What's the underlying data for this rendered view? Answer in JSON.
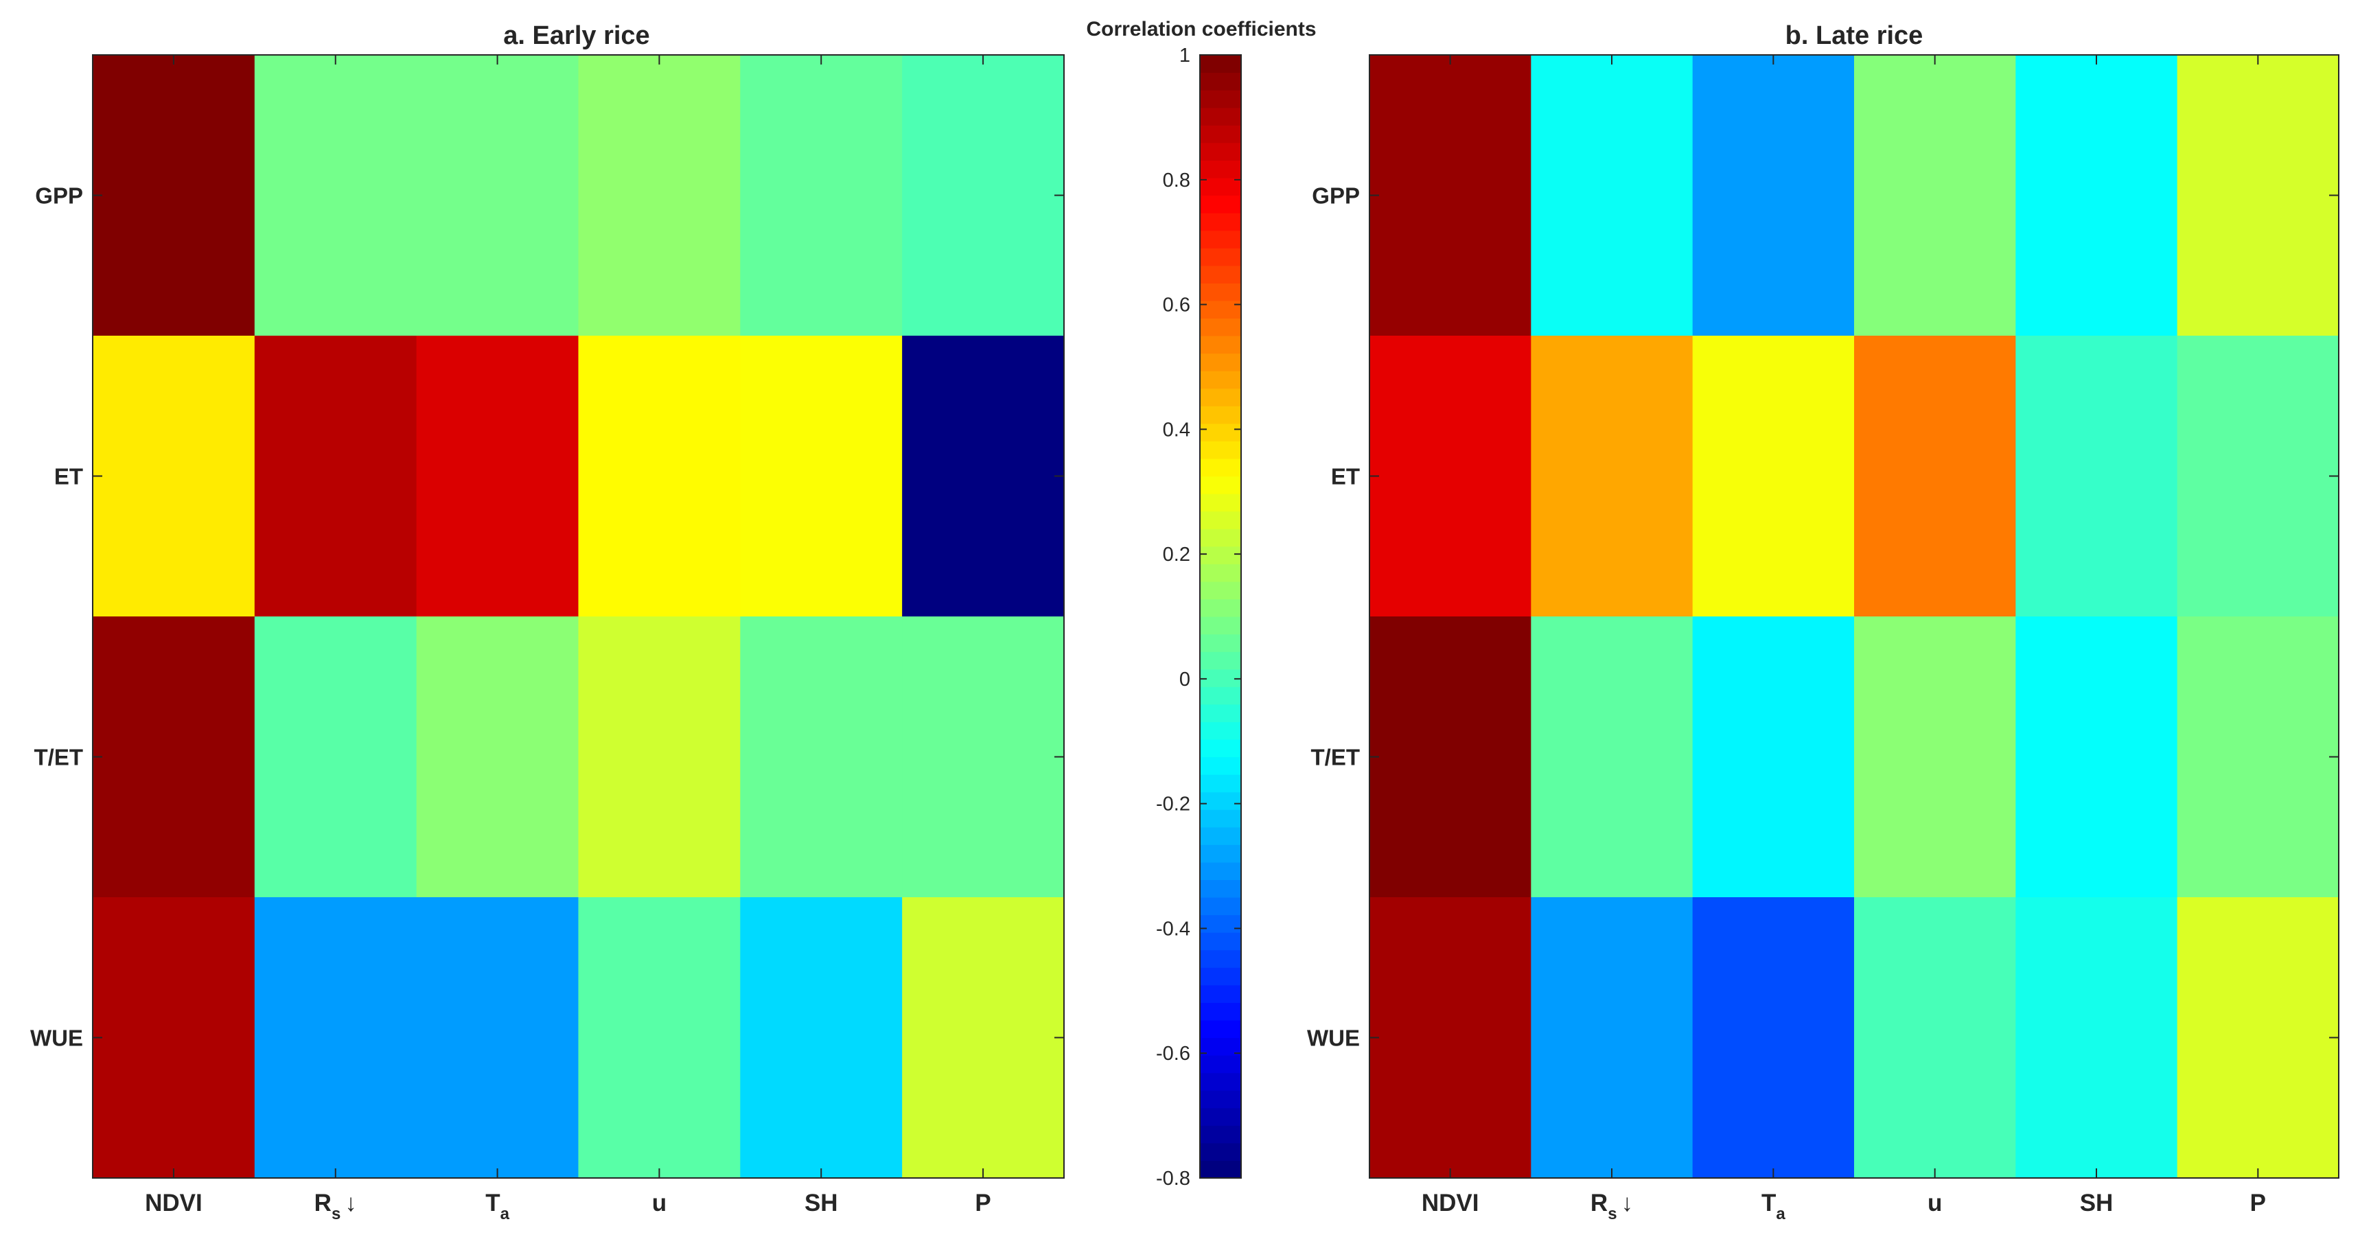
{
  "chart_data": [
    {
      "type": "heatmap",
      "title": "a. Early rice",
      "rows": [
        "GPP",
        "ET",
        "T/ET",
        "WUE"
      ],
      "columns": [
        {
          "main": "NDVI",
          "sub": "",
          "suffix": ""
        },
        {
          "main": "R",
          "sub": "s",
          "suffix": "↓"
        },
        {
          "main": "T",
          "sub": "a",
          "suffix": ""
        },
        {
          "main": "u",
          "sub": "",
          "suffix": ""
        },
        {
          "main": "SH",
          "sub": "",
          "suffix": ""
        },
        {
          "main": "P",
          "sub": "",
          "suffix": ""
        }
      ],
      "values": [
        [
          1.0,
          0.08,
          0.08,
          0.13,
          0.05,
          0.01
        ],
        [
          0.36,
          0.9,
          0.84,
          0.33,
          0.32,
          -0.8
        ],
        [
          0.97,
          0.03,
          0.12,
          0.24,
          0.06,
          0.06
        ],
        [
          0.92,
          -0.3,
          -0.3,
          0.03,
          -0.19,
          0.24
        ]
      ],
      "clim": [
        -0.8,
        1
      ]
    },
    {
      "type": "heatmap",
      "title": "b. Late rice",
      "rows": [
        "GPP",
        "ET",
        "T/ET",
        "WUE"
      ],
      "columns": [
        {
          "main": "NDVI",
          "sub": "",
          "suffix": ""
        },
        {
          "main": "R",
          "sub": "s",
          "suffix": "↓"
        },
        {
          "main": "T",
          "sub": "a",
          "suffix": ""
        },
        {
          "main": "u",
          "sub": "",
          "suffix": ""
        },
        {
          "main": "SH",
          "sub": "",
          "suffix": ""
        },
        {
          "main": "P",
          "sub": "",
          "suffix": ""
        }
      ],
      "values": [
        [
          0.96,
          -0.11,
          -0.3,
          0.11,
          -0.12,
          0.25
        ],
        [
          0.82,
          0.48,
          0.31,
          0.56,
          -0.03,
          0.04
        ],
        [
          1.0,
          0.04,
          -0.14,
          0.12,
          -0.12,
          0.09
        ],
        [
          0.94,
          -0.3,
          -0.44,
          0.0,
          -0.09,
          0.26
        ]
      ],
      "clim": [
        -0.8,
        1
      ]
    }
  ],
  "colorbar": {
    "title": "Correlation coefficients",
    "ticks": [
      "1",
      "0.8",
      "0.6",
      "0.4",
      "0.2",
      "0",
      "-0.2",
      "-0.4",
      "-0.6",
      "-0.8"
    ],
    "tick_values": [
      1,
      0.8,
      0.6,
      0.4,
      0.2,
      0,
      -0.2,
      -0.4,
      -0.6,
      -0.8
    ],
    "colormap": "jet",
    "range": [
      -0.8,
      1
    ]
  }
}
